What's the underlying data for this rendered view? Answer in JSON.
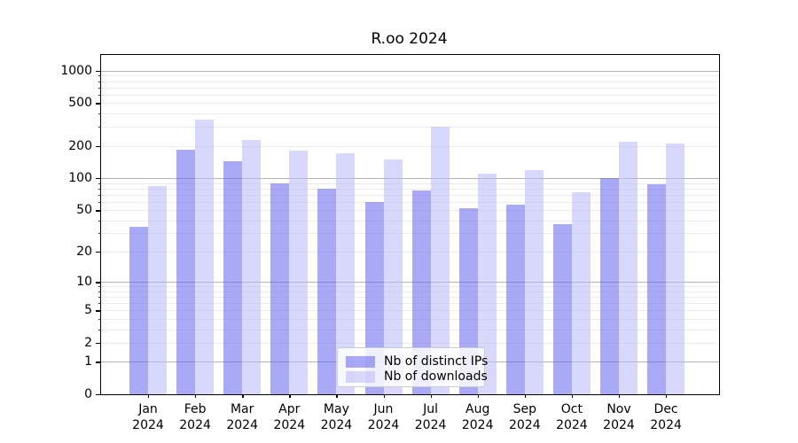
{
  "title": "R.oo 2024",
  "chart_data": {
    "type": "bar",
    "title": "R.oo 2024",
    "scale": "log1p",
    "grid": true,
    "legend_position": "lower center (inside plot)",
    "categories": [
      "Jan 2024",
      "Feb 2024",
      "Mar 2024",
      "Apr 2024",
      "May 2024",
      "Jun 2024",
      "Jul 2024",
      "Aug 2024",
      "Sep 2024",
      "Oct 2024",
      "Nov 2024",
      "Dec 2024"
    ],
    "series": [
      {
        "name": "Nb of distinct IPs",
        "color": "rgba(99,99,237,0.55)",
        "values": [
          35,
          184,
          145,
          89,
          80,
          60,
          76,
          52,
          56,
          37,
          100,
          88
        ]
      },
      {
        "name": "Nb of downloads",
        "color": "rgba(184,184,250,0.55)",
        "values": [
          85,
          350,
          225,
          180,
          171,
          149,
          300,
          111,
          118,
          73,
          220,
          212
        ]
      }
    ],
    "xlabel": "",
    "ylabel": "",
    "yticks": [
      0,
      1,
      2,
      5,
      10,
      20,
      50,
      100,
      200,
      500,
      1000
    ],
    "ylim": [
      0,
      1400
    ]
  },
  "colors": {
    "grid_major": "#b3b3b3",
    "grid_minor": "#ebebeb",
    "spine": "#000000",
    "legend_border": "#cccccc"
  }
}
